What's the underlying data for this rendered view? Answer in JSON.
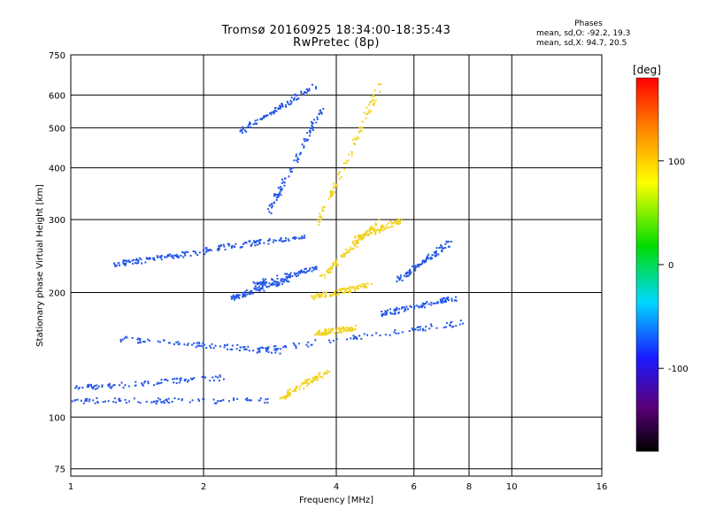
{
  "chart_data": {
    "type": "scatter",
    "title": "Tromsø 20160925 18:34:00-18:35:43",
    "subtitle": "RwPretec (8p)",
    "xlabel": "Frequency [MHz]",
    "ylabel": "Stationary phase Virtual Height [km]",
    "x_scale": "log",
    "y_scale": "log",
    "xlim": [
      1,
      16
    ],
    "ylim": [
      72,
      750
    ],
    "x_ticks": [
      1,
      2,
      4,
      6,
      8,
      10,
      16
    ],
    "y_ticks": [
      75,
      100,
      200,
      300,
      400,
      500,
      600,
      750
    ],
    "grid": true,
    "phase_stats": {
      "heading": "Phases",
      "o_line": "mean, sd,O: -92.2, 19.3",
      "x_line": "mean, sd,X:  94.7, 20.5"
    },
    "colorbar": {
      "label": "[deg]",
      "ticks": [
        100,
        0,
        -100
      ],
      "range": [
        -180,
        180
      ],
      "colormap": "rainbow"
    },
    "series": [
      {
        "name": "O",
        "color": "#2255e6",
        "traces": [
          {
            "f": [
              1.0,
              2.8
            ],
            "h": [
              110,
              110
            ]
          },
          {
            "f": [
              1.02,
              2.2
            ],
            "h": [
              118,
              125
            ]
          },
          {
            "f": [
              1.3,
              3.0
            ],
            "h": [
              155,
              145
            ]
          },
          {
            "f": [
              2.6,
              7.8
            ],
            "h": [
              145,
              170
            ]
          },
          {
            "f": [
              1.25,
              2.0
            ],
            "h": [
              235,
              252
            ]
          },
          {
            "f": [
              2.0,
              3.4
            ],
            "h": [
              255,
              275
            ]
          },
          {
            "f": [
              2.3,
              3.1
            ],
            "h": [
              195,
              215
            ]
          },
          {
            "f": [
              2.6,
              3.6
            ],
            "h": [
              210,
              230
            ]
          },
          {
            "f": [
              2.8,
              3.7
            ],
            "h": [
              315,
              560
            ]
          },
          {
            "f": [
              2.4,
              3.6
            ],
            "h": [
              490,
              640
            ]
          },
          {
            "f": [
              5.5,
              7.2
            ],
            "h": [
              215,
              265
            ]
          },
          {
            "f": [
              5.0,
              7.4
            ],
            "h": [
              178,
              195
            ]
          }
        ]
      },
      {
        "name": "X",
        "color": "#f2d21e",
        "traces": [
          {
            "f": [
              3.0,
              3.8
            ],
            "h": [
              112,
              130
            ]
          },
          {
            "f": [
              3.6,
              4.4
            ],
            "h": [
              160,
              165
            ]
          },
          {
            "f": [
              3.5,
              4.8
            ],
            "h": [
              195,
              210
            ]
          },
          {
            "f": [
              3.7,
              5.0
            ],
            "h": [
              220,
              300
            ]
          },
          {
            "f": [
              3.6,
              5.0
            ],
            "h": [
              290,
              640
            ]
          },
          {
            "f": [
              4.4,
              5.6
            ],
            "h": [
              270,
              300
            ]
          }
        ]
      }
    ]
  }
}
